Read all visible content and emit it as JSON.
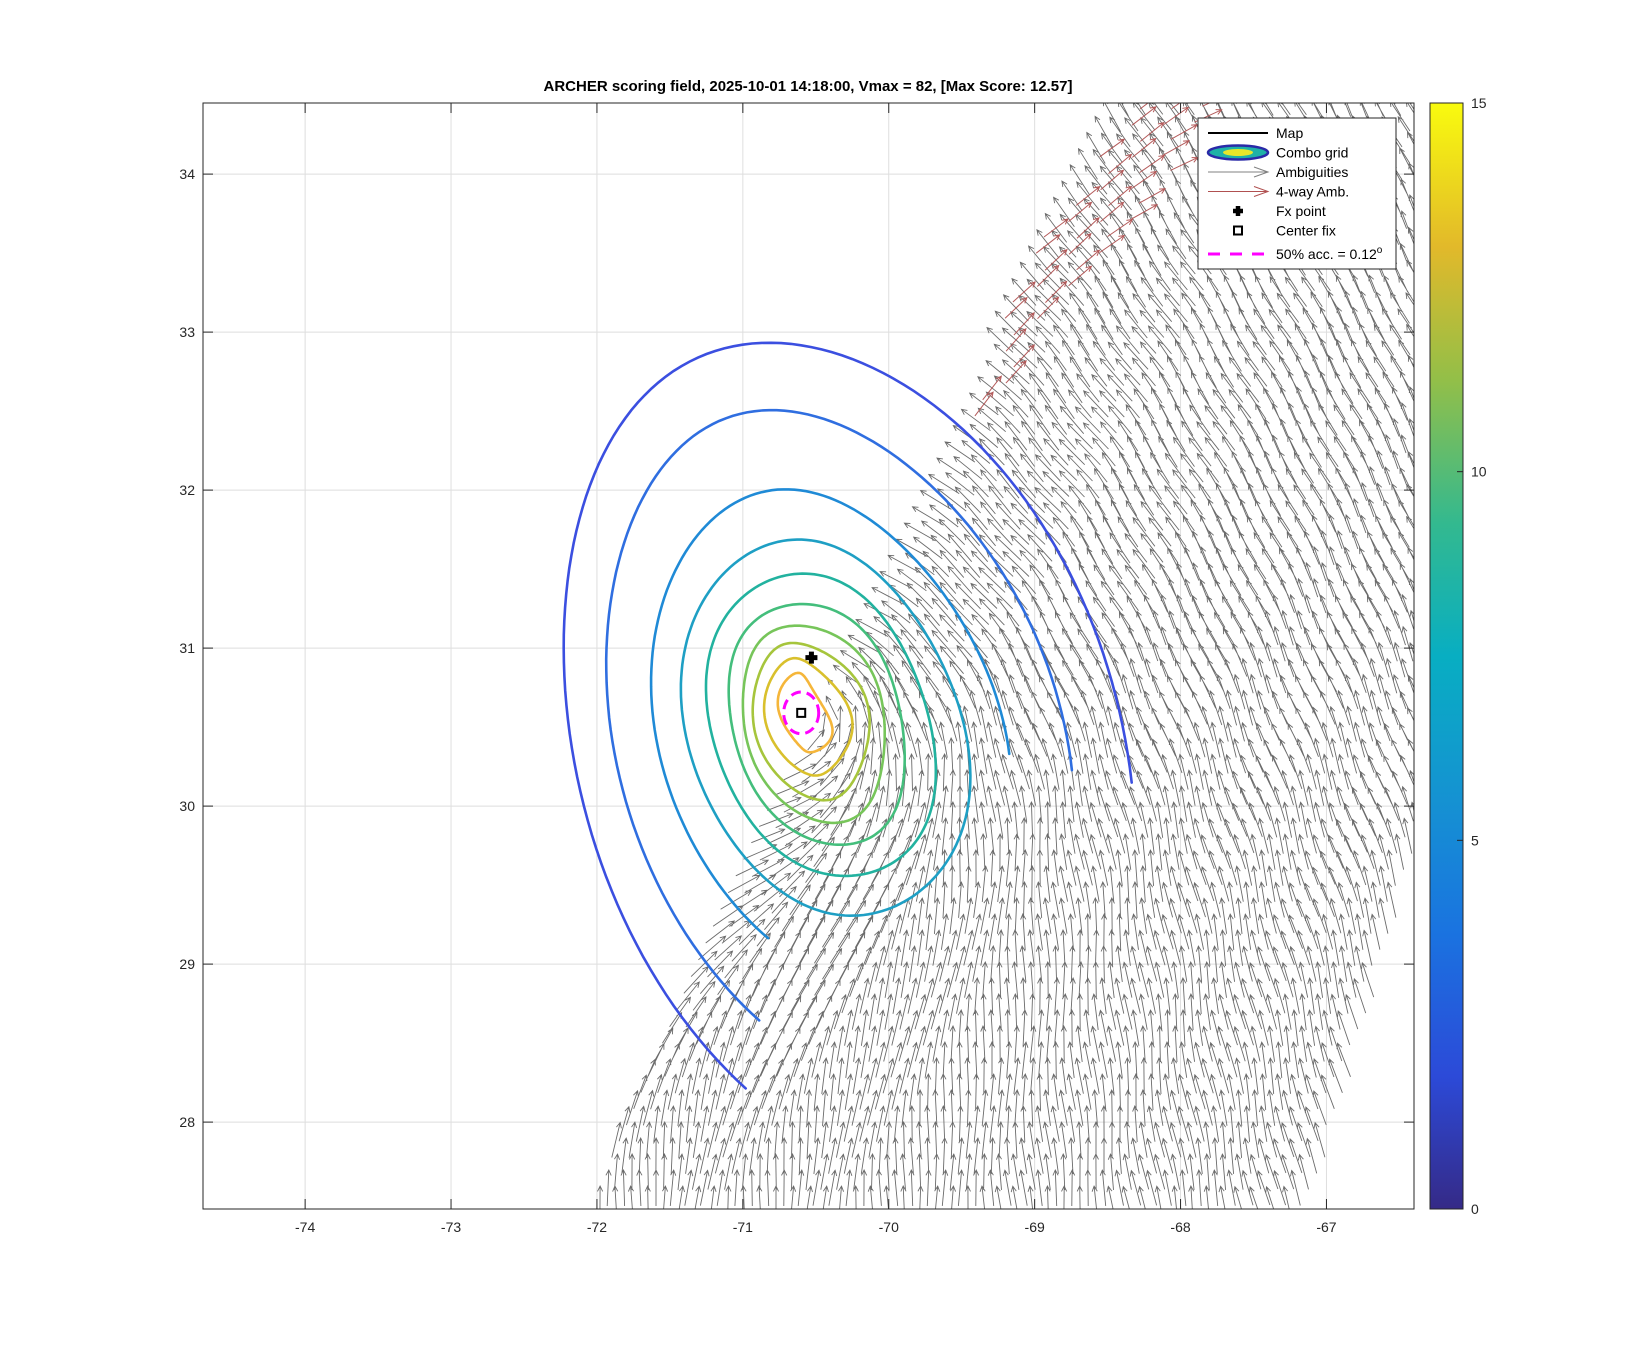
{
  "chart_data": {
    "type": "contour-vector-map",
    "title": "ARCHER scoring field, 2025-10-01 14:18:00, Vmax = 82, [Max Score: 12.57]",
    "xlabel": "",
    "ylabel": "",
    "xlim": [
      -74.7,
      -66.4
    ],
    "ylim": [
      27.45,
      34.45
    ],
    "xticks": [
      "-74",
      "-73",
      "-72",
      "-71",
      "-70",
      "-69",
      "-68",
      "-67"
    ],
    "yticks": [
      "28",
      "29",
      "30",
      "31",
      "32",
      "33",
      "34"
    ],
    "grid": true,
    "legend_position": "top-right",
    "legend": [
      {
        "label": "Map",
        "symbol": "line",
        "color": "#000000"
      },
      {
        "label": "Combo grid",
        "symbol": "ellipses",
        "color": "#2a2aa8"
      },
      {
        "label": "Ambiguities",
        "symbol": "arrow",
        "color": "#808080"
      },
      {
        "label": "4-way Amb.",
        "symbol": "arrow",
        "color": "#b05050"
      },
      {
        "label": "Fx point",
        "symbol": "plus",
        "color": "#000000"
      },
      {
        "label": "Center fix",
        "symbol": "square",
        "color": "#000000"
      },
      {
        "label": "50% acc. = 0.12",
        "superscript": "o",
        "symbol": "dashed",
        "color": "#ff00ff"
      }
    ],
    "colorbar": {
      "range": [
        0,
        15
      ],
      "ticks": [
        "0",
        "5",
        "10",
        "15"
      ],
      "colormap": "parula"
    },
    "vortex_center": {
      "lon": -70.6,
      "lat": 30.6
    },
    "fx_point": {
      "lon": -70.53,
      "lat": 30.94
    },
    "center_fix": {
      "lon": -70.6,
      "lat": 30.59
    },
    "accuracy_radius_deg": 0.12,
    "contour_levels": [
      {
        "level": 12,
        "color": "#f5b63a",
        "a": 0.15,
        "b": 0.26
      },
      {
        "level": 11,
        "color": "#d9c02c",
        "a": 0.27,
        "b": 0.38
      },
      {
        "level": 10,
        "color": "#a6c53c",
        "a": 0.38,
        "b": 0.51
      },
      {
        "level": 9,
        "color": "#77c55a",
        "a": 0.48,
        "b": 0.64
      },
      {
        "level": 8,
        "color": "#44be7c",
        "a": 0.59,
        "b": 0.78
      },
      {
        "level": 7,
        "color": "#22b29f",
        "a": 0.75,
        "b": 0.98
      },
      {
        "level": 6,
        "color": "#1e9fc4",
        "a": 0.93,
        "b": 1.22
      },
      {
        "level": 5,
        "color": "#1f8ad6",
        "a": 1.15,
        "b": 1.6
      },
      {
        "level": 4,
        "color": "#2f6ee0",
        "a": 1.5,
        "b": 2.2
      },
      {
        "level": 3,
        "color": "#3b4fe0",
        "a": 1.85,
        "b": 2.7
      }
    ]
  }
}
